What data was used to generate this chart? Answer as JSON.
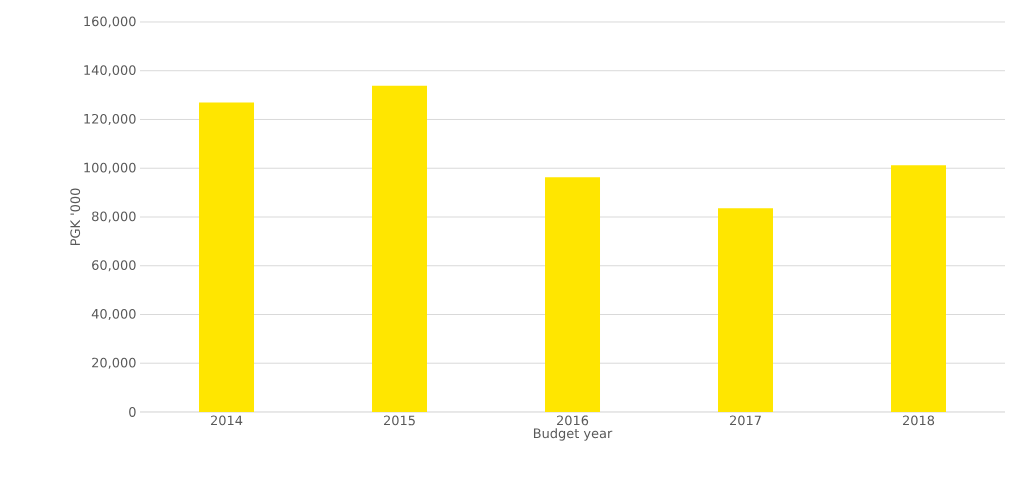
{
  "chart_data": {
    "type": "bar",
    "xlabel": "Budget year",
    "ylabel": "PGK '000",
    "categories": [
      "2014",
      "2015",
      "2016",
      "2017",
      "2018"
    ],
    "values": [
      127000,
      133800,
      96300,
      83600,
      101200
    ],
    "color": "#ffe600",
    "ylim": [
      0,
      160000
    ],
    "yticks": [
      {
        "value": 0,
        "label": "0"
      },
      {
        "value": 20000,
        "label": "20,000"
      },
      {
        "value": 40000,
        "label": "40,000"
      },
      {
        "value": 60000,
        "label": "60,000"
      },
      {
        "value": 80000,
        "label": "80,000"
      },
      {
        "value": 100000,
        "label": "100,000"
      },
      {
        "value": 120000,
        "label": "120,000"
      },
      {
        "value": 140000,
        "label": "140,000"
      },
      {
        "value": 160000,
        "label": "160,000"
      }
    ],
    "grid": "y"
  }
}
